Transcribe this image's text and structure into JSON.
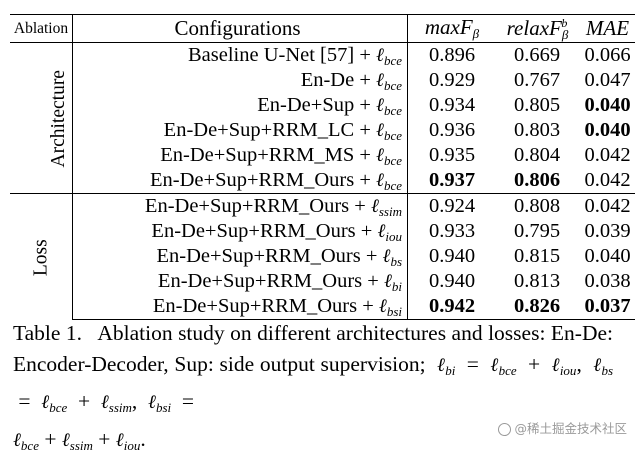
{
  "table": {
    "headers": {
      "ablation": "Ablation",
      "configurations": "Configurations",
      "max_f": "maxF",
      "max_f_sub": "β",
      "relax_f": "relaxF",
      "relax_f_sub": "β",
      "relax_f_sup": "b",
      "mae": "MAE"
    },
    "groups": [
      {
        "label": "Architecture",
        "rows": [
          {
            "config": "Baseline U-Net [57] + ",
            "loss": "bce",
            "max_f": "0.896",
            "relax_f": "0.669",
            "mae": "0.066",
            "bold": []
          },
          {
            "config": "En-De + ",
            "loss": "bce",
            "max_f": "0.929",
            "relax_f": "0.767",
            "mae": "0.047",
            "bold": []
          },
          {
            "config": "En-De+Sup + ",
            "loss": "bce",
            "max_f": "0.934",
            "relax_f": "0.805",
            "mae": "0.040",
            "bold": [
              "mae"
            ]
          },
          {
            "config": "En-De+Sup+RRM_LC + ",
            "loss": "bce",
            "max_f": "0.936",
            "relax_f": "0.803",
            "mae": "0.040",
            "bold": [
              "mae"
            ]
          },
          {
            "config": "En-De+Sup+RRM_MS + ",
            "loss": "bce",
            "max_f": "0.935",
            "relax_f": "0.804",
            "mae": "0.042",
            "bold": []
          },
          {
            "config": "En-De+Sup+RRM_Ours + ",
            "loss": "bce",
            "max_f": "0.937",
            "relax_f": "0.806",
            "mae": "0.042",
            "bold": [
              "max_f",
              "relax_f"
            ]
          }
        ]
      },
      {
        "label": "Loss",
        "rows": [
          {
            "config": "En-De+Sup+RRM_Ours + ",
            "loss": "ssim",
            "max_f": "0.924",
            "relax_f": "0.808",
            "mae": "0.042",
            "bold": []
          },
          {
            "config": "En-De+Sup+RRM_Ours + ",
            "loss": "iou",
            "max_f": "0.933",
            "relax_f": "0.795",
            "mae": "0.039",
            "bold": []
          },
          {
            "config": "En-De+Sup+RRM_Ours + ",
            "loss": "bs",
            "max_f": "0.940",
            "relax_f": "0.815",
            "mae": "0.040",
            "bold": []
          },
          {
            "config": "En-De+Sup+RRM_Ours + ",
            "loss": "bi",
            "max_f": "0.940",
            "relax_f": "0.813",
            "mae": "0.038",
            "bold": []
          },
          {
            "config": "En-De+Sup+RRM_Ours + ",
            "loss": "bsi",
            "max_f": "0.942",
            "relax_f": "0.826",
            "mae": "0.037",
            "bold": [
              "max_f",
              "relax_f",
              "mae"
            ]
          }
        ]
      }
    ]
  },
  "caption": {
    "label": "Table 1.",
    "text": "Ablation study on different architectures and losses: En-De: Encoder-Decoder, Sup: side output supervision;",
    "eq1_lhs": "bi",
    "eq1_a": "bce",
    "eq1_b": "iou",
    "eq2_lhs": "bs",
    "eq2_a": "bce",
    "eq2_b": "ssim",
    "eq3_lhs": "bsi",
    "eq3_a": "bce",
    "eq3_b": "ssim",
    "eq3_c": "iou"
  },
  "watermark": "@稀土掘金技术社区"
}
